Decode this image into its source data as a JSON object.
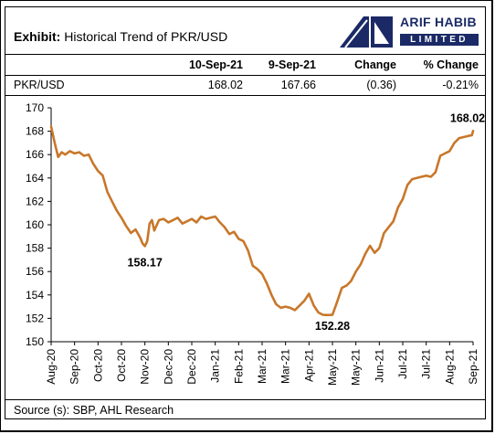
{
  "title": {
    "prefix": "Exhibit:",
    "text": "Historical Trend of PKR/USD"
  },
  "logo": {
    "line1": "ARIF HABIB",
    "line2": "LIMITED"
  },
  "table": {
    "headers": [
      "10-Sep-21",
      "9-Sep-21",
      "Change",
      "% Change"
    ],
    "row": {
      "label": "PKR/USD",
      "values": [
        "168.02",
        "167.66",
        "(0.36)",
        "-0.21%"
      ]
    }
  },
  "source": "Source (s): SBP, AHL Research",
  "colors": {
    "line": "#c8772a",
    "logo": "#1b2a66"
  },
  "chart_data": {
    "type": "line",
    "title": "",
    "xlabel": "",
    "ylabel": "",
    "ylim": [
      150,
      170
    ],
    "yticks": [
      "150",
      "152",
      "154",
      "156",
      "158",
      "160",
      "162",
      "164",
      "166",
      "168",
      "170"
    ],
    "xticks": [
      "Aug-20",
      "Sep-20",
      "Oct-20",
      "Oct-20",
      "Nov-20",
      "Dec-20",
      "Dec-20",
      "Jan-21",
      "Feb-21",
      "Mar-21",
      "Mar-21",
      "Apr-21",
      "May-21",
      "May-21",
      "Jun-21",
      "Jul-21",
      "Jul-21",
      "Aug-21",
      "Sep-21"
    ],
    "grid": false,
    "annotations": [
      {
        "text": "158.17",
        "x": 4.0,
        "y": 158.17
      },
      {
        "text": "152.28",
        "x": 12.0,
        "y": 152.28
      },
      {
        "text": "168.02",
        "x": 18.0,
        "y": 168.02
      }
    ],
    "series": [
      {
        "x": [
          0.0,
          0.15,
          0.3,
          0.45,
          0.6,
          0.8,
          1.0,
          1.2,
          1.4,
          1.6,
          1.8,
          2.0,
          2.2,
          2.4,
          2.6,
          2.8,
          3.0,
          3.2,
          3.4,
          3.6,
          3.8,
          3.9,
          4.0,
          4.1,
          4.2,
          4.3,
          4.4,
          4.6,
          4.8,
          5.0,
          5.2,
          5.4,
          5.6,
          5.8,
          6.0,
          6.2,
          6.4,
          6.6,
          6.8,
          7.0,
          7.2,
          7.4,
          7.6,
          7.8,
          8.0,
          8.2,
          8.4,
          8.6,
          8.8,
          9.0,
          9.2,
          9.4,
          9.6,
          9.8,
          10.0,
          10.2,
          10.4,
          10.6,
          10.8,
          11.0,
          11.2,
          11.4,
          11.6,
          11.8,
          12.0,
          12.2,
          12.4,
          12.6,
          12.8,
          13.0,
          13.2,
          13.4,
          13.6,
          13.8,
          14.0,
          14.2,
          14.4,
          14.6,
          14.8,
          15.0,
          15.2,
          15.4,
          15.6,
          15.8,
          16.0,
          16.2,
          16.4,
          16.6,
          16.8,
          17.0,
          17.2,
          17.4,
          17.6,
          17.8,
          17.95,
          18.0
        ],
        "values": [
          168.4,
          167.0,
          165.8,
          166.2,
          166.0,
          166.3,
          166.1,
          166.2,
          165.9,
          166.0,
          165.2,
          164.6,
          164.2,
          162.8,
          162.0,
          161.2,
          160.6,
          159.9,
          159.3,
          159.6,
          158.9,
          158.4,
          158.17,
          158.6,
          160.1,
          160.4,
          159.5,
          160.4,
          160.5,
          160.2,
          160.4,
          160.6,
          160.1,
          160.3,
          160.5,
          160.2,
          160.7,
          160.5,
          160.6,
          160.7,
          160.2,
          159.8,
          159.2,
          159.4,
          158.8,
          158.6,
          157.8,
          156.5,
          156.2,
          155.8,
          155.0,
          154.0,
          153.2,
          152.9,
          153.0,
          152.9,
          152.7,
          153.1,
          153.5,
          154.1,
          153.1,
          152.5,
          152.3,
          152.28,
          152.3,
          153.4,
          154.6,
          154.8,
          155.2,
          156.0,
          156.6,
          157.5,
          158.2,
          157.6,
          158.0,
          159.3,
          159.8,
          160.3,
          161.5,
          162.2,
          163.4,
          163.9,
          164.0,
          164.1,
          164.2,
          164.1,
          164.5,
          165.9,
          166.1,
          166.3,
          167.0,
          167.4,
          167.5,
          167.6,
          167.66,
          168.02
        ]
      }
    ]
  }
}
